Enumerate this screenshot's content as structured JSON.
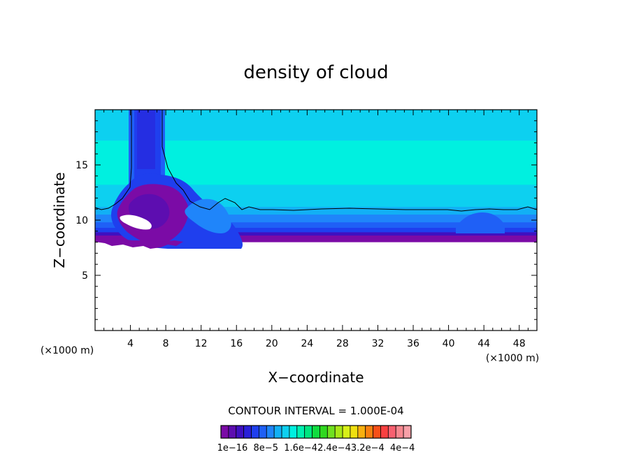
{
  "chart_data": {
    "type": "heatmap",
    "title": "density of cloud",
    "xlabel": "X−coordinate",
    "ylabel": "Z−coordinate",
    "x_unit": "(×1000 m)",
    "y_unit": "(×1000 m)",
    "xlim": [
      0,
      50
    ],
    "ylim": [
      0,
      20
    ],
    "x_ticks": [
      "4",
      "8",
      "12",
      "16",
      "20",
      "24",
      "28",
      "32",
      "36",
      "40",
      "44",
      "48"
    ],
    "y_ticks": [
      "5",
      "10",
      "15"
    ],
    "contour_interval_text": "CONTOUR INTERVAL = 1.000E-04",
    "colorbar": {
      "colors": [
        "#7b0ba6",
        "#5d0db0",
        "#3f10c0",
        "#2a20d8",
        "#1f3fee",
        "#1f60f6",
        "#1f85fa",
        "#12b0f5",
        "#0dd0f0",
        "#00f0e0",
        "#00f0b0",
        "#00e680",
        "#10dc40",
        "#30d820",
        "#70e020",
        "#a8e818",
        "#d8f018",
        "#f0e010",
        "#f8b010",
        "#f88010",
        "#f85018",
        "#f84040",
        "#f86070",
        "#f88890",
        "#f8a0a8"
      ],
      "tick_labels": [
        "1e−16",
        "8e−5",
        "1.6e−4",
        "2.4e−4",
        "3.2e−4",
        "4e−4"
      ],
      "tick_label_text": "1e−16  8e−5  1.6e−42.4e−43.2e−4  4e−4"
    },
    "cloud_base_z": 8.2,
    "cloud_top_contour_z": 10.9,
    "layers": [
      {
        "zmin": 8.0,
        "zmax": 8.7,
        "color": "#7b0ba6"
      },
      {
        "zmin": 8.6,
        "zmax": 9.0,
        "color": "#3f10c0"
      },
      {
        "zmin": 8.9,
        "zmax": 9.4,
        "color": "#1f3fee"
      },
      {
        "zmin": 9.3,
        "zmax": 9.9,
        "color": "#1f60f6"
      },
      {
        "zmin": 9.8,
        "zmax": 10.6,
        "color": "#1f85fa"
      },
      {
        "zmin": 10.5,
        "zmax": 11.3,
        "color": "#12b0f5"
      },
      {
        "zmin": 11.2,
        "zmax": 13.5,
        "color": "#0dd0f0"
      },
      {
        "zmin": 13.2,
        "zmax": 17.3,
        "color": "#00f0e0"
      },
      {
        "zmin": 17.2,
        "zmax": 20.0,
        "color": "#0dd0f0"
      }
    ]
  }
}
